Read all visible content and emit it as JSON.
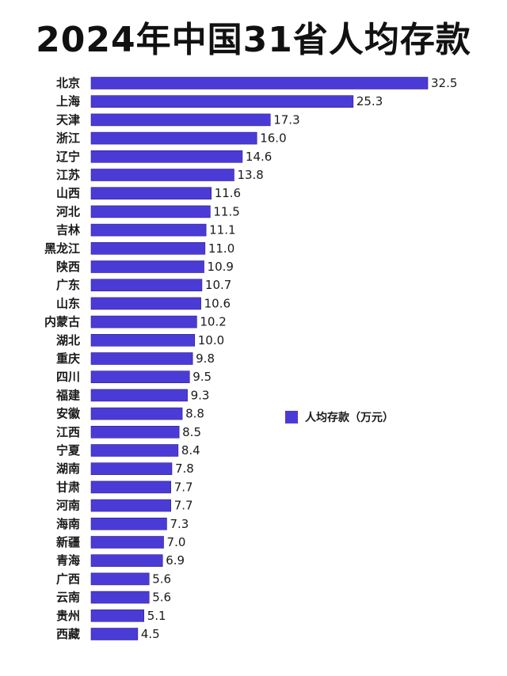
{
  "chart_data": {
    "type": "bar",
    "orientation": "horizontal",
    "title": "2024年中国31省人均存款",
    "categories": [
      "北京",
      "上海",
      "天津",
      "浙江",
      "辽宁",
      "江苏",
      "山西",
      "河北",
      "吉林",
      "黑龙江",
      "陕西",
      "广东",
      "山东",
      "内蒙古",
      "湖北",
      "重庆",
      "四川",
      "福建",
      "安徽",
      "江西",
      "宁夏",
      "湖南",
      "甘肃",
      "河南",
      "海南",
      "新疆",
      "青海",
      "广西",
      "云南",
      "贵州",
      "西藏"
    ],
    "series": [
      {
        "name": "人均存款（万元）",
        "color": "#4b3bd6",
        "values": [
          32.5,
          25.3,
          17.3,
          16.0,
          14.6,
          13.8,
          11.6,
          11.5,
          11.1,
          11.0,
          10.9,
          10.7,
          10.6,
          10.2,
          10.0,
          9.8,
          9.5,
          9.3,
          8.8,
          8.5,
          8.4,
          7.8,
          7.7,
          7.7,
          7.3,
          7.0,
          6.9,
          5.6,
          5.6,
          5.1,
          4.5
        ],
        "labels": [
          "32.5",
          "25.3",
          "17.3",
          "16.0",
          "14.6",
          "13.8",
          "11.6",
          "11.5",
          "11.1",
          "11.0",
          "10.9",
          "10.7",
          "10.6",
          "10.2",
          "10.0",
          "9.8",
          "9.5",
          "9.3",
          "8.8",
          "8.5",
          "8.4",
          "7.8",
          "7.7",
          "7.7",
          "7.3",
          "7.0",
          "6.9",
          "5.6",
          "5.6",
          "5.1",
          "4.5"
        ]
      }
    ],
    "xlim": [
      0,
      32.5
    ],
    "grid": false,
    "legend": "right-middle"
  }
}
